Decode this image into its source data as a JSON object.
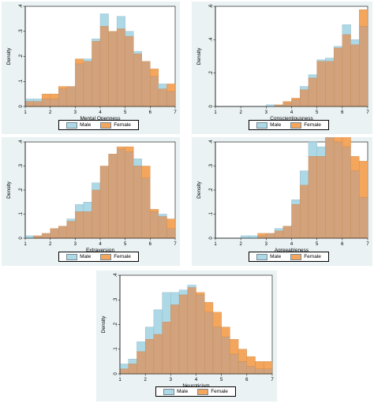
{
  "colors": {
    "male_fill": "#add8e6",
    "male_stroke": "#8fb4c4",
    "female_fill": "#f4a65c",
    "female_stroke": "#c98c52",
    "overlap_fill": "#d1a27c",
    "panel_bg": "#eaf2f3"
  },
  "legend": {
    "male": "Male",
    "female": "Female"
  },
  "chart_data": [
    {
      "type": "bar",
      "xlabel": "Mental Openness",
      "ylabel": "Density",
      "xlim": [
        1,
        7
      ],
      "ylim": [
        0,
        0.4
      ],
      "xticks": [
        "1",
        "2",
        "3",
        "4",
        "5",
        "6",
        "7"
      ],
      "yticks": [
        "0",
        ".1",
        ".2",
        ".3",
        ".4"
      ],
      "bin_edges": [
        1,
        1.333,
        1.667,
        2,
        2.333,
        2.667,
        3,
        3.333,
        3.667,
        4,
        4.333,
        4.667,
        5,
        5.333,
        5.667,
        6,
        6.333,
        6.667,
        7
      ],
      "series": [
        {
          "name": "Male",
          "values": [
            0.03,
            0.03,
            0.03,
            0.03,
            0.07,
            0.08,
            0.17,
            0.19,
            0.27,
            0.37,
            0.3,
            0.36,
            0.3,
            0.22,
            0.18,
            0.12,
            0.09,
            0.06
          ]
        },
        {
          "name": "Female",
          "values": [
            0.02,
            0.02,
            0.05,
            0.05,
            0.08,
            0.08,
            0.19,
            0.18,
            0.26,
            0.32,
            0.3,
            0.31,
            0.28,
            0.21,
            0.18,
            0.15,
            0.07,
            0.09
          ]
        }
      ]
    },
    {
      "type": "bar",
      "xlabel": "Conscientiousness",
      "ylabel": "Density",
      "xlim": [
        1,
        7
      ],
      "ylim": [
        0,
        0.6
      ],
      "xticks": [
        "1",
        "2",
        "3",
        "4",
        "5",
        "6",
        "7"
      ],
      "yticks": [
        "0",
        ".2",
        ".4",
        ".6"
      ],
      "bin_edges": [
        1,
        1.333,
        1.667,
        2,
        2.333,
        2.667,
        3,
        3.333,
        3.667,
        4,
        4.333,
        4.667,
        5,
        5.333,
        5.667,
        6,
        6.333,
        6.667,
        7
      ],
      "series": [
        {
          "name": "Male",
          "values": [
            0,
            0,
            0,
            0,
            0,
            0,
            0.01,
            0.01,
            0.02,
            0.04,
            0.12,
            0.19,
            0.28,
            0.29,
            0.36,
            0.49,
            0.4,
            0.48
          ]
        },
        {
          "name": "Female",
          "values": [
            0,
            0,
            0,
            0,
            0,
            0,
            0,
            0.01,
            0.03,
            0.05,
            0.1,
            0.17,
            0.27,
            0.27,
            0.35,
            0.43,
            0.37,
            0.58
          ]
        }
      ]
    },
    {
      "type": "bar",
      "xlabel": "Extraversion",
      "ylabel": "Density",
      "xlim": [
        1,
        7
      ],
      "ylim": [
        0,
        0.4
      ],
      "xticks": [
        "1",
        "2",
        "3",
        "4",
        "5",
        "6",
        "7"
      ],
      "yticks": [
        "0",
        ".1",
        ".2",
        ".3",
        ".4"
      ],
      "bin_edges": [
        1,
        1.333,
        1.667,
        2,
        2.333,
        2.667,
        3,
        3.333,
        3.667,
        4,
        4.333,
        4.667,
        5,
        5.333,
        5.667,
        6,
        6.333,
        6.667,
        7
      ],
      "series": [
        {
          "name": "Male",
          "values": [
            0.01,
            0.01,
            0.02,
            0.04,
            0.05,
            0.08,
            0.14,
            0.15,
            0.23,
            0.3,
            0.35,
            0.37,
            0.36,
            0.33,
            0.25,
            0.11,
            0.1,
            0.04
          ]
        },
        {
          "name": "Female",
          "values": [
            0,
            0.01,
            0.02,
            0.04,
            0.05,
            0.07,
            0.11,
            0.11,
            0.2,
            0.3,
            0.35,
            0.38,
            0.38,
            0.3,
            0.3,
            0.12,
            0.09,
            0.08
          ]
        }
      ]
    },
    {
      "type": "bar",
      "xlabel": "Agreeableness",
      "ylabel": "Density",
      "xlim": [
        1,
        7
      ],
      "ylim": [
        0,
        0.4
      ],
      "xticks": [
        "1",
        "2",
        "3",
        "4",
        "5",
        "6",
        "7"
      ],
      "yticks": [
        "0",
        ".1",
        ".2",
        ".3",
        ".4"
      ],
      "bin_edges": [
        1,
        1.333,
        1.667,
        2,
        2.333,
        2.667,
        3,
        3.333,
        3.667,
        4,
        4.333,
        4.667,
        5,
        5.333,
        5.667,
        6,
        6.333,
        6.667,
        7
      ],
      "series": [
        {
          "name": "Male",
          "values": [
            0,
            0,
            0,
            0.01,
            0.01,
            0.01,
            0.02,
            0.04,
            0.05,
            0.16,
            0.28,
            0.4,
            0.38,
            0.43,
            0.4,
            0.38,
            0.28,
            0.17
          ]
        },
        {
          "name": "Female",
          "values": [
            0,
            0,
            0,
            0,
            0,
            0.02,
            0.02,
            0.03,
            0.05,
            0.14,
            0.22,
            0.34,
            0.34,
            0.43,
            0.42,
            0.42,
            0.34,
            0.32
          ]
        }
      ]
    },
    {
      "type": "bar",
      "xlabel": "Neuroticism",
      "ylabel": "Density",
      "xlim": [
        1,
        7
      ],
      "ylim": [
        0,
        0.4
      ],
      "xticks": [
        "1",
        "2",
        "3",
        "4",
        "5",
        "6",
        "7"
      ],
      "yticks": [
        "0",
        ".1",
        ".2",
        ".3",
        ".4"
      ],
      "bin_edges": [
        1,
        1.333,
        1.667,
        2,
        2.333,
        2.667,
        3,
        3.333,
        3.667,
        4,
        4.333,
        4.667,
        5,
        5.333,
        5.667,
        6,
        6.333,
        6.667,
        7
      ],
      "series": [
        {
          "name": "Male",
          "values": [
            0.04,
            0.06,
            0.13,
            0.19,
            0.26,
            0.33,
            0.33,
            0.34,
            0.36,
            0.32,
            0.25,
            0.19,
            0.15,
            0.08,
            0.05,
            0.03,
            0.02,
            0.02
          ]
        },
        {
          "name": "Female",
          "values": [
            0.02,
            0.04,
            0.09,
            0.14,
            0.16,
            0.21,
            0.28,
            0.32,
            0.35,
            0.33,
            0.29,
            0.25,
            0.19,
            0.14,
            0.1,
            0.07,
            0.05,
            0.05
          ]
        }
      ]
    }
  ]
}
